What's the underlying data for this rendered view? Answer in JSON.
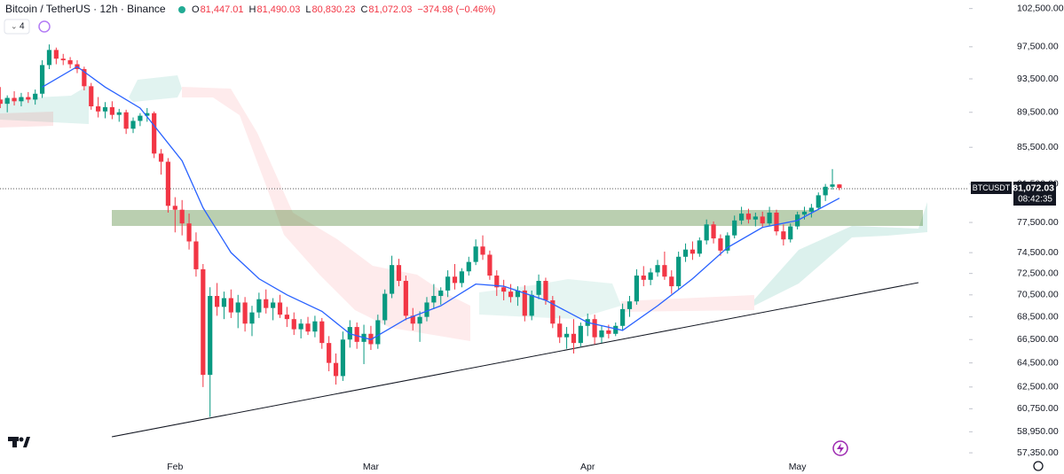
{
  "legend": {
    "symbol": "Bitcoin / TetherUS · 12h · Binance",
    "ohlc": [
      {
        "label": "O",
        "value": "81,447.01"
      },
      {
        "label": "H",
        "value": "81,490.03"
      },
      {
        "label": "L",
        "value": "80,830.23"
      },
      {
        "label": "C",
        "value": "81,072.03"
      }
    ],
    "change": "−374.98 (−0.46%)",
    "indicator_count": "4"
  },
  "price_tag": {
    "symbol": "BTCUSDT",
    "price": "81,072.03",
    "countdown": "08:42:35"
  },
  "chart_data": {
    "type": "candlestick",
    "log_scale": true,
    "up_color": "#089981",
    "down_color": "#f23645",
    "ylim": [
      57090,
      103650
    ],
    "yticks": [
      {
        "value": 102500,
        "label": "102,500.00"
      },
      {
        "value": 97500,
        "label": "97,500.00"
      },
      {
        "value": 93500,
        "label": "93,500.00"
      },
      {
        "value": 89500,
        "label": "89,500.00"
      },
      {
        "value": 85500,
        "label": "85,500.00"
      },
      {
        "value": 81500,
        "label": "81,500.00"
      },
      {
        "value": 77500,
        "label": "77,500.00"
      },
      {
        "value": 74500,
        "label": "74,500.00"
      },
      {
        "value": 72500,
        "label": "72,500.00"
      },
      {
        "value": 70500,
        "label": "70,500.00"
      },
      {
        "value": 68500,
        "label": "68,500.00"
      },
      {
        "value": 66500,
        "label": "66,500.00"
      },
      {
        "value": 64500,
        "label": "64,500.00"
      },
      {
        "value": 62500,
        "label": "62,500.00"
      },
      {
        "value": 60750,
        "label": "60,750.00"
      },
      {
        "value": 58950,
        "label": "58,950.00"
      },
      {
        "value": 57350,
        "label": "57,350.00"
      }
    ],
    "categories": [
      null,
      null,
      null,
      null,
      null,
      null,
      null,
      null,
      null,
      null,
      null,
      null,
      null,
      null,
      null,
      null,
      null,
      null,
      null,
      null,
      null,
      null,
      null,
      null,
      null,
      "Feb",
      null,
      null,
      null,
      null,
      null,
      null,
      null,
      null,
      null,
      null,
      null,
      null,
      null,
      null,
      null,
      null,
      null,
      null,
      null,
      null,
      null,
      null,
      null,
      null,
      null,
      null,
      null,
      "Mar",
      null,
      null,
      null,
      null,
      null,
      null,
      null,
      null,
      null,
      null,
      null,
      null,
      null,
      null,
      null,
      null,
      null,
      null,
      null,
      null,
      null,
      null,
      null,
      null,
      null,
      null,
      null,
      null,
      null,
      null,
      "Apr",
      null,
      null,
      null,
      null,
      null,
      null,
      null,
      null,
      null,
      null,
      null,
      null,
      null,
      null,
      null,
      null,
      null,
      null,
      null,
      null,
      null,
      null,
      null,
      null,
      null,
      null,
      null,
      null,
      null,
      "May",
      null,
      null,
      null,
      null,
      null,
      null
    ],
    "candles": [
      [
        91000,
        92500,
        90000,
        90500
      ],
      [
        90500,
        91500,
        89500,
        91200
      ],
      [
        91200,
        92000,
        90300,
        90800
      ],
      [
        90800,
        91800,
        90200,
        91300
      ],
      [
        91300,
        91900,
        90600,
        91000
      ],
      [
        91000,
        92200,
        90400,
        91700
      ],
      [
        91700,
        95800,
        91200,
        95200
      ],
      [
        95200,
        97800,
        94700,
        97100
      ],
      [
        97100,
        97400,
        95300,
        96000
      ],
      [
        96000,
        96600,
        95200,
        95800
      ],
      [
        95800,
        96200,
        94800,
        95300
      ],
      [
        95300,
        95800,
        94200,
        94700
      ],
      [
        94700,
        95000,
        92100,
        92600
      ],
      [
        92600,
        93000,
        89800,
        90200
      ],
      [
        90200,
        91300,
        88900,
        89600
      ],
      [
        89600,
        90700,
        88800,
        90100
      ],
      [
        90100,
        90800,
        88700,
        89200
      ],
      [
        89200,
        89900,
        88400,
        89500
      ],
      [
        89500,
        89800,
        87000,
        87600
      ],
      [
        87600,
        88900,
        87100,
        88500
      ],
      [
        88500,
        89400,
        87900,
        89100
      ],
      [
        89100,
        90000,
        88400,
        89400
      ],
      [
        89400,
        89600,
        84300,
        84800
      ],
      [
        84800,
        85300,
        82500,
        83900
      ],
      [
        83900,
        84300,
        78500,
        79200
      ],
      [
        79200,
        80100,
        76500,
        78800
      ],
      [
        78800,
        79800,
        76200,
        77400
      ],
      [
        77400,
        78400,
        74800,
        75600
      ],
      [
        75600,
        76500,
        72200,
        72900
      ],
      [
        72900,
        73400,
        62500,
        63500
      ],
      [
        63500,
        71200,
        60100,
        70400
      ],
      [
        70400,
        71600,
        68600,
        69400
      ],
      [
        69400,
        70800,
        68300,
        70200
      ],
      [
        70200,
        71000,
        68400,
        68900
      ],
      [
        68900,
        70500,
        67500,
        69800
      ],
      [
        69800,
        70300,
        67200,
        67900
      ],
      [
        67900,
        69500,
        66800,
        68900
      ],
      [
        68900,
        70700,
        68400,
        70100
      ],
      [
        70100,
        71000,
        68800,
        69300
      ],
      [
        69300,
        70200,
        68200,
        69800
      ],
      [
        69800,
        70500,
        68400,
        68700
      ],
      [
        68700,
        69400,
        67600,
        68300
      ],
      [
        68300,
        68900,
        66900,
        67400
      ],
      [
        67400,
        68300,
        66600,
        67900
      ],
      [
        67900,
        68500,
        66900,
        67200
      ],
      [
        67200,
        68600,
        66700,
        68100
      ],
      [
        68100,
        68400,
        65700,
        66200
      ],
      [
        66200,
        66800,
        63800,
        64500
      ],
      [
        64500,
        65300,
        62700,
        63400
      ],
      [
        63400,
        67200,
        63000,
        66500
      ],
      [
        66500,
        68200,
        65800,
        67600
      ],
      [
        67600,
        68000,
        65700,
        66300
      ],
      [
        66300,
        67800,
        64400,
        67000
      ],
      [
        67000,
        67700,
        65600,
        66100
      ],
      [
        66100,
        68700,
        65700,
        68200
      ],
      [
        68200,
        71000,
        67800,
        70600
      ],
      [
        70600,
        74200,
        70200,
        73300
      ],
      [
        73300,
        73900,
        71300,
        71800
      ],
      [
        71800,
        72300,
        68200,
        68600
      ],
      [
        68600,
        69300,
        67300,
        67900
      ],
      [
        67900,
        69000,
        66300,
        68500
      ],
      [
        68500,
        70300,
        68100,
        69800
      ],
      [
        69800,
        71500,
        69200,
        70400
      ],
      [
        70400,
        71200,
        69600,
        70900
      ],
      [
        70900,
        72800,
        70300,
        72200
      ],
      [
        72200,
        73400,
        71000,
        71600
      ],
      [
        71600,
        73000,
        71200,
        72700
      ],
      [
        72700,
        74100,
        72300,
        73600
      ],
      [
        73600,
        75800,
        73300,
        75100
      ],
      [
        75100,
        76200,
        73800,
        74300
      ],
      [
        74300,
        74700,
        71900,
        72300
      ],
      [
        72300,
        72800,
        70400,
        71200
      ],
      [
        71200,
        71900,
        70000,
        70800
      ],
      [
        70800,
        71500,
        69800,
        70300
      ],
      [
        70300,
        71300,
        69500,
        70900
      ],
      [
        70900,
        71400,
        68100,
        68600
      ],
      [
        68600,
        70900,
        68200,
        70500
      ],
      [
        70500,
        72400,
        70100,
        71800
      ],
      [
        71800,
        72100,
        69600,
        70000
      ],
      [
        70000,
        70400,
        67500,
        67900
      ],
      [
        67900,
        68600,
        66200,
        66700
      ],
      [
        66700,
        67600,
        65700,
        67000
      ],
      [
        67000,
        68300,
        65300,
        66200
      ],
      [
        66200,
        68000,
        65900,
        67700
      ],
      [
        67700,
        68800,
        66800,
        68300
      ],
      [
        68300,
        68700,
        66100,
        66700
      ],
      [
        66700,
        67700,
        66200,
        67300
      ],
      [
        67300,
        67800,
        66600,
        67000
      ],
      [
        67000,
        68000,
        66800,
        67700
      ],
      [
        67700,
        69700,
        67300,
        69200
      ],
      [
        69200,
        70400,
        68500,
        69900
      ],
      [
        69900,
        72900,
        69600,
        72300
      ],
      [
        72300,
        73200,
        71300,
        71900
      ],
      [
        71900,
        73000,
        71400,
        72600
      ],
      [
        72600,
        73800,
        72200,
        73300
      ],
      [
        73300,
        74600,
        71900,
        72200
      ],
      [
        72200,
        72800,
        70600,
        71300
      ],
      [
        71300,
        74600,
        71000,
        74100
      ],
      [
        74100,
        75400,
        73600,
        74800
      ],
      [
        74800,
        75600,
        73800,
        74400
      ],
      [
        74400,
        76000,
        74100,
        75700
      ],
      [
        75700,
        77800,
        75300,
        77300
      ],
      [
        77300,
        77600,
        75400,
        75900
      ],
      [
        75900,
        76300,
        74200,
        74700
      ],
      [
        74700,
        76500,
        74400,
        76200
      ],
      [
        76200,
        78200,
        75900,
        77700
      ],
      [
        77700,
        79100,
        77300,
        78400
      ],
      [
        78400,
        78900,
        77400,
        77800
      ],
      [
        77800,
        78500,
        77100,
        78100
      ],
      [
        78100,
        78600,
        77000,
        77400
      ],
      [
        77400,
        79100,
        77200,
        78500
      ],
      [
        78500,
        78800,
        76200,
        76600
      ],
      [
        76600,
        77300,
        75200,
        75800
      ],
      [
        75800,
        77400,
        75500,
        77100
      ],
      [
        77100,
        78600,
        76800,
        78300
      ],
      [
        78300,
        79100,
        77800,
        78600
      ],
      [
        78600,
        79400,
        78000,
        79000
      ],
      [
        79000,
        80600,
        78800,
        80300
      ],
      [
        80300,
        81500,
        79700,
        81200
      ],
      [
        81200,
        83100,
        80900,
        81447.01
      ],
      [
        81447.01,
        81490.03,
        80830.23,
        81072.03
      ]
    ],
    "ma": {
      "color": "#2962ff",
      "x": [
        6,
        11,
        15,
        20,
        26,
        29,
        33,
        37,
        41,
        46,
        50,
        53,
        58,
        63,
        68,
        72,
        78,
        84,
        89,
        94,
        99,
        104,
        109,
        114,
        120
      ],
      "values": [
        92500,
        95000,
        92500,
        90000,
        84000,
        79000,
        74500,
        72000,
        70500,
        69000,
        67000,
        66500,
        68300,
        69500,
        71500,
        71300,
        70000,
        68000,
        67300,
        69500,
        72000,
        75000,
        77000,
        77700,
        80000
      ]
    }
  }
}
